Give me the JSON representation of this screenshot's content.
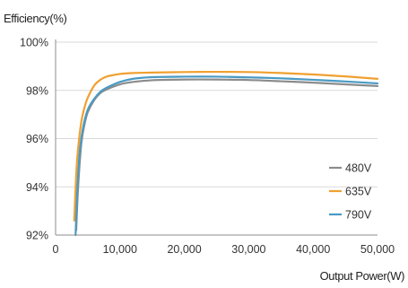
{
  "chart_data": {
    "type": "line",
    "title": "",
    "ylabel": "Efficiency(%)",
    "xlabel": "Output Power(W)",
    "xlim": [
      0,
      50000
    ],
    "ylim": [
      92,
      100
    ],
    "xticks": [
      0,
      10000,
      20000,
      30000,
      40000,
      50000
    ],
    "xtick_labels": [
      "0",
      "10,000",
      "20,000",
      "30,000",
      "40,000",
      "50,000"
    ],
    "yticks": [
      92,
      94,
      96,
      98,
      100
    ],
    "ytick_labels": [
      "92%",
      "94%",
      "96%",
      "98%",
      "100%"
    ],
    "grid": true,
    "legend": "bottom-right",
    "series": [
      {
        "name": "480V",
        "color": "#8c8c8c",
        "x": [
          3200,
          3500,
          4000,
          4500,
          5000,
          6000,
          7000,
          8000,
          10000,
          12000,
          15000,
          20000,
          25000,
          30000,
          35000,
          40000,
          45000,
          50000
        ],
        "y": [
          92.2,
          94.0,
          95.8,
          96.6,
          97.1,
          97.6,
          97.9,
          98.05,
          98.25,
          98.35,
          98.42,
          98.45,
          98.45,
          98.43,
          98.38,
          98.32,
          98.25,
          98.18
        ]
      },
      {
        "name": "635V",
        "color": "#f0a030",
        "x": [
          2900,
          3200,
          3500,
          4000,
          4500,
          5000,
          6000,
          7000,
          8000,
          10000,
          12000,
          15000,
          20000,
          25000,
          30000,
          35000,
          40000,
          45000,
          50000
        ],
        "y": [
          92.6,
          94.5,
          95.6,
          96.7,
          97.3,
          97.7,
          98.2,
          98.45,
          98.58,
          98.68,
          98.72,
          98.74,
          98.76,
          98.77,
          98.76,
          98.72,
          98.66,
          98.58,
          98.48
        ]
      },
      {
        "name": "790V",
        "color": "#4a9ac4",
        "x": [
          3100,
          3400,
          3800,
          4300,
          5000,
          6000,
          7000,
          8000,
          10000,
          12000,
          15000,
          20000,
          25000,
          30000,
          35000,
          40000,
          45000,
          50000
        ],
        "y": [
          92.0,
          94.0,
          95.6,
          96.5,
          97.2,
          97.65,
          97.95,
          98.12,
          98.35,
          98.48,
          98.55,
          98.57,
          98.57,
          98.54,
          98.5,
          98.44,
          98.37,
          98.29
        ]
      }
    ]
  }
}
